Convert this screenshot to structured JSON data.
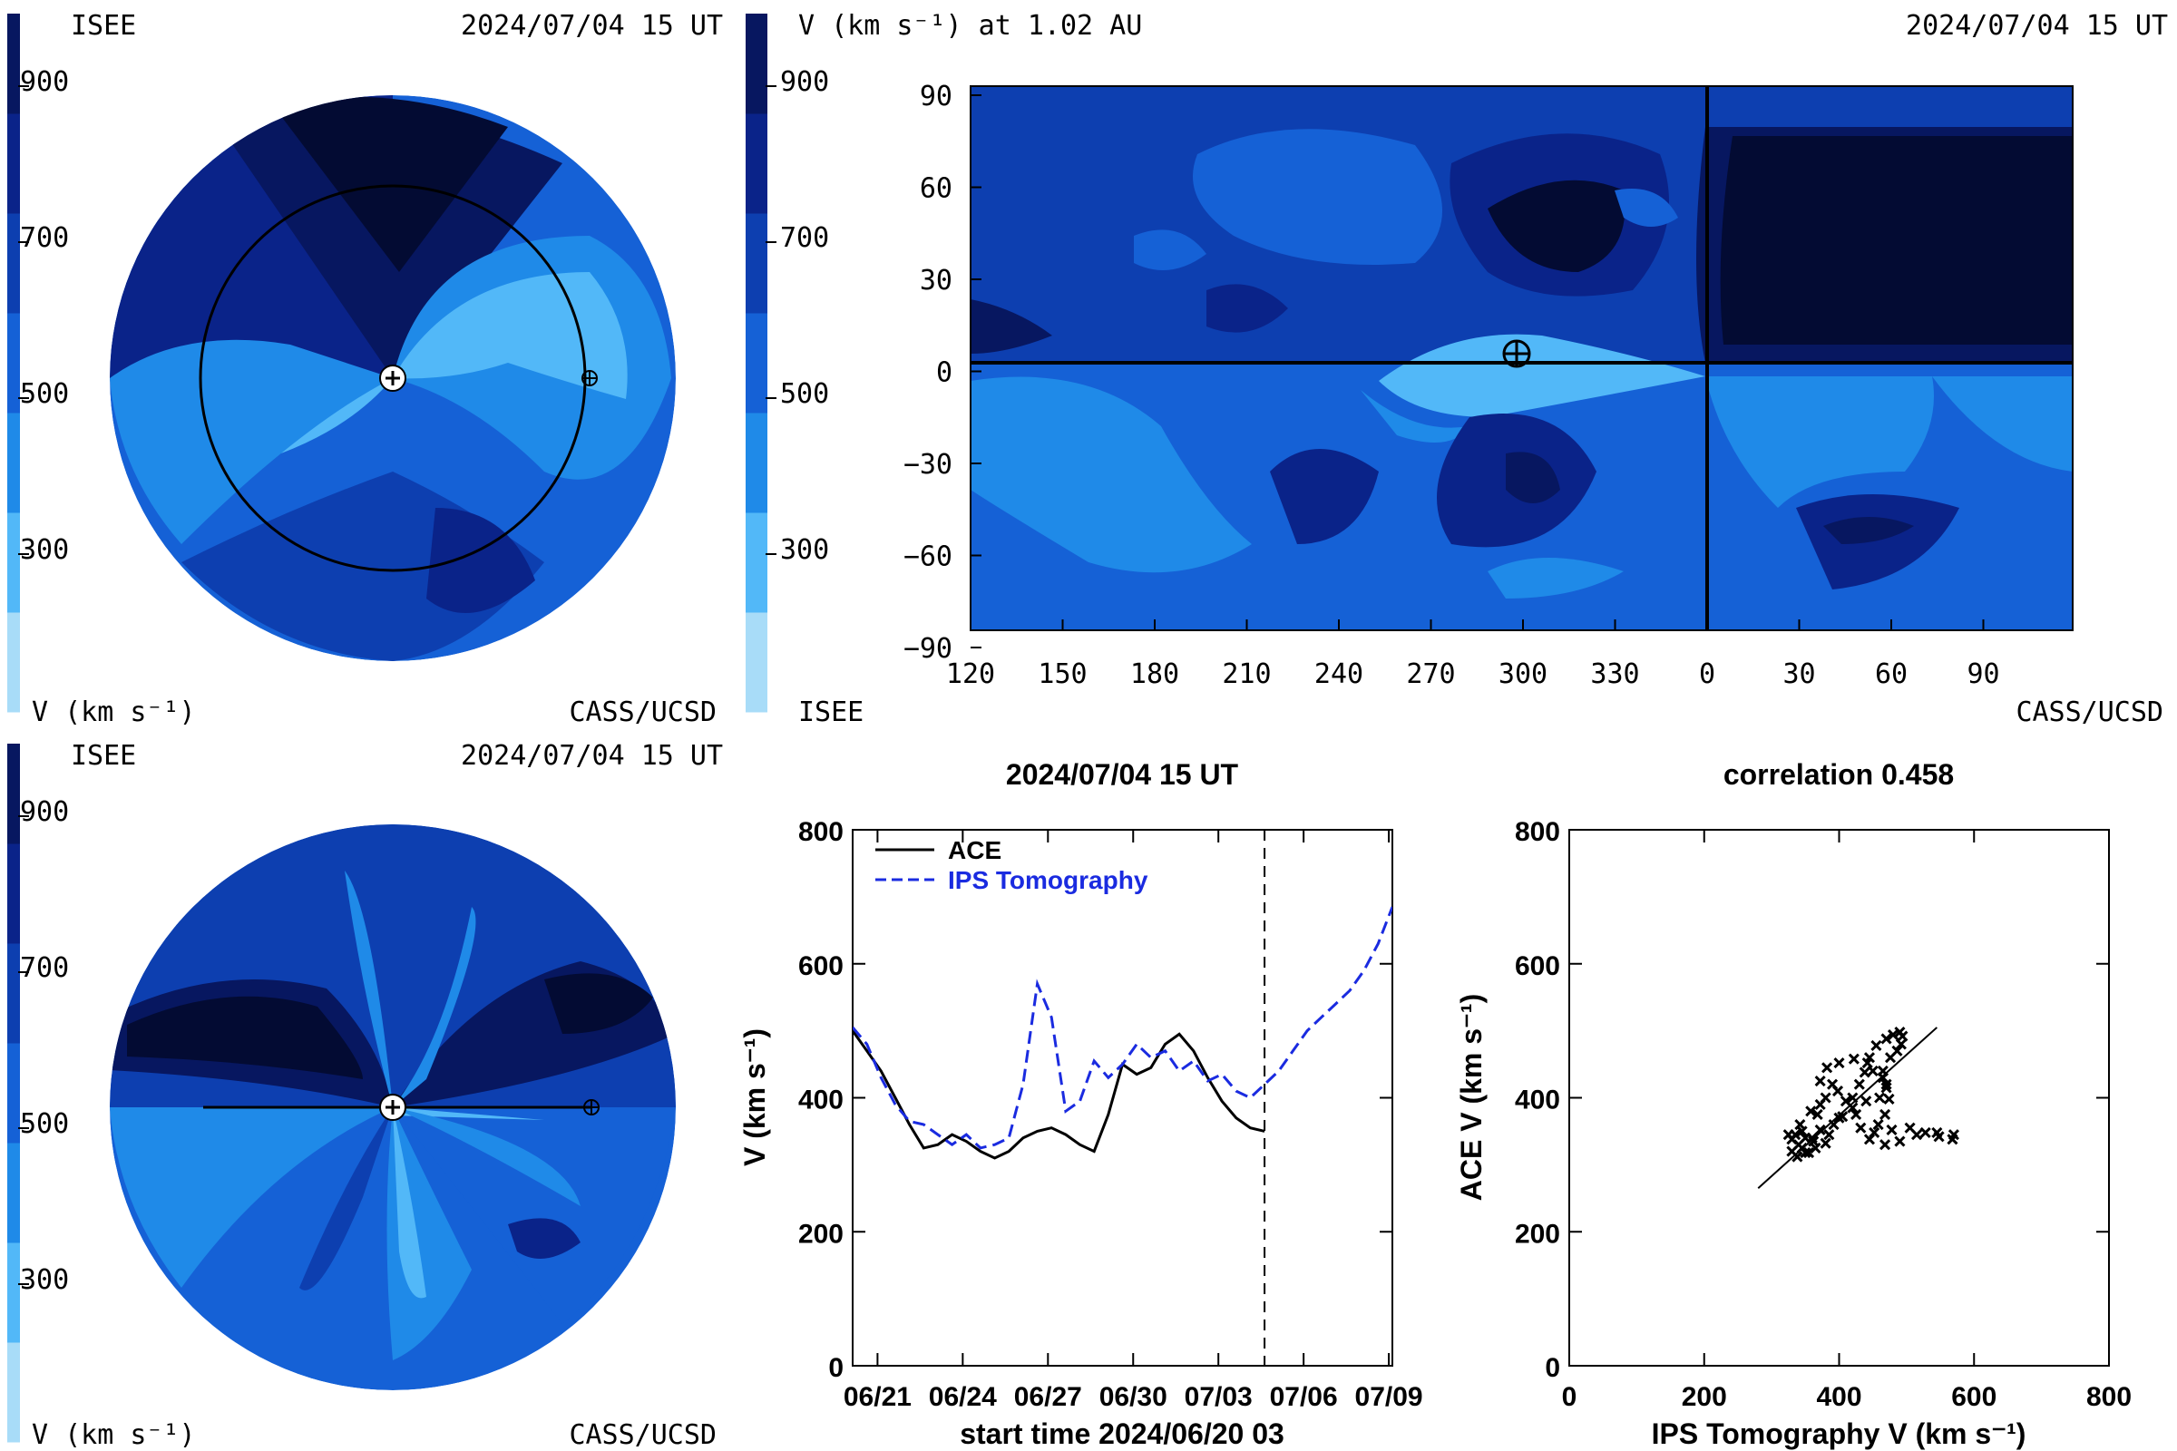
{
  "palette": [
    "#a8dcf8",
    "#52b8f8",
    "#1f8ae8",
    "#1561d6",
    "#0d3fb0",
    "#0a2389",
    "#071760",
    "#030b33"
  ],
  "line_colors": {
    "ace": "#000000",
    "ips": "#1a2be0"
  },
  "panel_tl": {
    "org_left": "ISEE",
    "datetime": "2024/07/04 15 UT",
    "colorbar_ticks": [
      "900",
      "700",
      "500",
      "300"
    ],
    "unit_label": "V (km s⁻¹)",
    "org_right": "CASS/UCSD",
    "view": "ecliptic"
  },
  "panel_tr": {
    "title": "V (km s⁻¹) at 1.02 AU",
    "datetime": "2024/07/04 15 UT",
    "colorbar_ticks": [
      "900",
      "700",
      "500",
      "300"
    ],
    "org_left": "ISEE",
    "org_right": "CASS/UCSD",
    "lat_ticks": [
      "90",
      "60",
      "30",
      "0",
      "−30",
      "−60",
      "−90"
    ],
    "lon_ticks": [
      "120",
      "150",
      "180",
      "210",
      "240",
      "270",
      "300",
      "330",
      "0",
      "30",
      "60",
      "90"
    ]
  },
  "panel_bl": {
    "org_left": "ISEE",
    "datetime": "2024/07/04 15 UT",
    "colorbar_ticks": [
      "900",
      "700",
      "500",
      "300"
    ],
    "unit_label": "V (km s⁻¹)",
    "org_right": "CASS/UCSD",
    "view": "meridional"
  },
  "chart_data": [
    {
      "type": "line",
      "title": "2024/07/04 15 UT",
      "xlabel": "start time 2024/06/20 03",
      "ylabel": "V (km s⁻¹)",
      "x_unit": "days since start",
      "xlim": [
        0,
        19
      ],
      "ylim": [
        0,
        800
      ],
      "y_ticks": [
        0,
        200,
        400,
        600,
        800
      ],
      "x_tick_labels": [
        "06/21",
        "06/24",
        "06/27",
        "06/30",
        "07/03",
        "07/06",
        "07/09"
      ],
      "x_tick_positions": [
        0.875,
        3.875,
        6.875,
        9.875,
        12.875,
        15.875,
        18.875
      ],
      "marker_x": 14.5,
      "legend": [
        "ACE",
        "IPS Tomography"
      ],
      "legend_position": "top-left",
      "series": [
        {
          "name": "ACE",
          "style": "solid",
          "x": [
            0,
            0.5,
            1,
            1.5,
            2,
            2.5,
            3,
            3.5,
            4,
            4.5,
            5,
            5.5,
            6,
            6.5,
            7,
            7.5,
            8,
            8.5,
            9,
            9.5,
            10,
            10.5,
            11,
            11.5,
            12,
            12.5,
            13,
            13.5,
            14,
            14.5
          ],
          "y": [
            500,
            470,
            440,
            400,
            360,
            325,
            330,
            345,
            335,
            320,
            310,
            320,
            340,
            350,
            355,
            345,
            330,
            320,
            375,
            450,
            435,
            445,
            480,
            495,
            470,
            430,
            395,
            370,
            355,
            350
          ]
        },
        {
          "name": "IPS Tomography",
          "style": "dashed",
          "x": [
            0,
            0.5,
            1,
            1.5,
            2,
            2.5,
            3,
            3.5,
            4,
            4.5,
            5,
            5.5,
            6,
            6.5,
            7,
            7.5,
            8,
            8.5,
            9,
            9.5,
            10,
            10.5,
            11,
            11.5,
            12,
            12.5,
            13,
            13.5,
            14,
            14.5,
            15,
            15.5,
            16,
            16.5,
            17,
            17.5,
            18,
            18.5,
            19
          ],
          "y": [
            505,
            480,
            430,
            390,
            365,
            360,
            345,
            330,
            345,
            325,
            330,
            340,
            420,
            570,
            520,
            380,
            395,
            455,
            430,
            450,
            480,
            460,
            470,
            440,
            455,
            425,
            435,
            410,
            400,
            420,
            440,
            470,
            500,
            520,
            540,
            560,
            590,
            630,
            685
          ]
        }
      ]
    },
    {
      "type": "scatter",
      "title": "correlation 0.458",
      "xlabel": "IPS Tomography V (km s⁻¹)",
      "ylabel": "ACE V (km s⁻¹)",
      "xlim": [
        0,
        800
      ],
      "ylim": [
        0,
        800
      ],
      "x_ticks": [
        0,
        200,
        400,
        600,
        800
      ],
      "y_ticks": [
        0,
        200,
        400,
        600,
        800
      ],
      "fit_line": {
        "x": [
          280,
          545
        ],
        "y": [
          265,
          505
        ]
      },
      "points": [
        [
          335,
          345
        ],
        [
          340,
          330
        ],
        [
          330,
          320
        ],
        [
          350,
          340
        ],
        [
          345,
          325
        ],
        [
          338,
          312
        ],
        [
          355,
          318
        ],
        [
          362,
          335
        ],
        [
          372,
          352
        ],
        [
          368,
          375
        ],
        [
          380,
          400
        ],
        [
          372,
          425
        ],
        [
          382,
          445
        ],
        [
          400,
          452
        ],
        [
          422,
          458
        ],
        [
          442,
          452
        ],
        [
          450,
          440
        ],
        [
          465,
          430
        ],
        [
          470,
          415
        ],
        [
          460,
          400
        ],
        [
          440,
          395
        ],
        [
          420,
          385
        ],
        [
          405,
          372
        ],
        [
          392,
          360
        ],
        [
          385,
          345
        ],
        [
          380,
          332
        ],
        [
          365,
          325
        ],
        [
          350,
          318
        ],
        [
          400,
          370
        ],
        [
          420,
          400
        ],
        [
          430,
          420
        ],
        [
          438,
          438
        ],
        [
          445,
          460
        ],
        [
          455,
          478
        ],
        [
          470,
          488
        ],
        [
          480,
          494
        ],
        [
          490,
          498
        ],
        [
          494,
          492
        ],
        [
          492,
          480
        ],
        [
          486,
          470
        ],
        [
          476,
          460
        ],
        [
          465,
          440
        ],
        [
          470,
          420
        ],
        [
          474,
          398
        ],
        [
          468,
          375
        ],
        [
          458,
          360
        ],
        [
          452,
          348
        ],
        [
          478,
          352
        ],
        [
          505,
          355
        ],
        [
          528,
          348
        ],
        [
          548,
          342
        ],
        [
          568,
          338
        ],
        [
          570,
          345
        ],
        [
          545,
          348
        ],
        [
          515,
          345
        ],
        [
          490,
          335
        ],
        [
          468,
          330
        ],
        [
          445,
          338
        ],
        [
          432,
          355
        ],
        [
          425,
          375
        ],
        [
          410,
          395
        ],
        [
          398,
          410
        ],
        [
          390,
          420
        ],
        [
          360,
          340
        ],
        [
          345,
          350
        ],
        [
          330,
          338
        ],
        [
          325,
          345
        ],
        [
          342,
          360
        ],
        [
          358,
          380
        ],
        [
          372,
          390
        ]
      ]
    }
  ]
}
